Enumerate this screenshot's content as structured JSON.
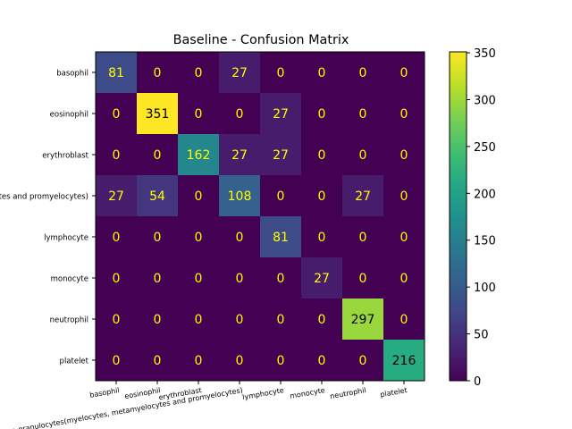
{
  "chart_data": {
    "type": "heatmap",
    "title": "Baseline - Confusion Matrix",
    "xlabel": "",
    "ylabel": "",
    "rows": [
      "basophil",
      "eosinophil",
      "erythroblast",
      "ig (immature granulocytes(myelocytes, metamyelocytes and promyelocytes)",
      "lymphocyte",
      "monocyte",
      "neutrophil",
      "platelet"
    ],
    "columns": [
      "basophil",
      "eosinophil",
      "erythroblast",
      "ig (immature granulocytes(myelocytes, metamyelocytes and promyelocytes)",
      "lymphocyte",
      "monocyte",
      "neutrophil",
      "platelet"
    ],
    "values": [
      [
        81,
        0,
        0,
        27,
        0,
        0,
        0,
        0
      ],
      [
        0,
        351,
        0,
        0,
        27,
        0,
        0,
        0
      ],
      [
        0,
        0,
        162,
        27,
        27,
        0,
        0,
        0
      ],
      [
        27,
        54,
        0,
        108,
        0,
        0,
        27,
        0
      ],
      [
        0,
        0,
        0,
        0,
        81,
        0,
        0,
        0
      ],
      [
        0,
        0,
        0,
        0,
        0,
        27,
        0,
        0
      ],
      [
        0,
        0,
        0,
        0,
        0,
        0,
        297,
        0
      ],
      [
        0,
        0,
        0,
        0,
        0,
        0,
        0,
        216
      ]
    ],
    "colormap": "viridis",
    "vmin": 0,
    "vmax": 351,
    "colorbar_ticks": [
      0,
      50,
      100,
      150,
      200,
      250,
      300,
      350
    ],
    "text_color_dark": "#000000",
    "text_color_light": "#ffff00",
    "legend": "colorbar-right",
    "grid": false
  }
}
